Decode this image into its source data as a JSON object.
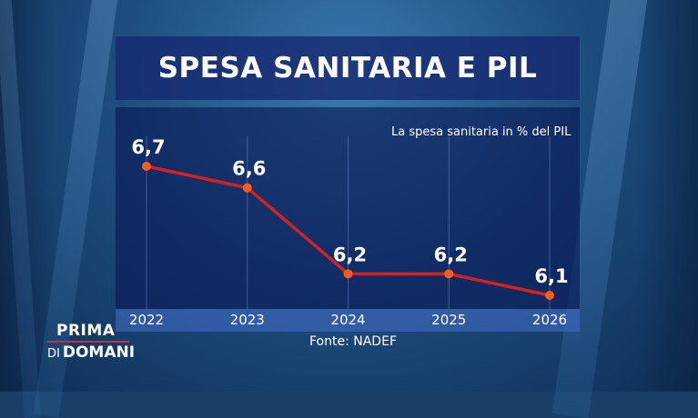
{
  "title": "SPESA SANITARIA E PIL",
  "source": "Fonte: NADEF",
  "logo": {
    "top": "PRIMA",
    "bottom_small": "DI",
    "bottom_big": "DOMANI"
  },
  "colors": {
    "line": "#d42020",
    "point": "#ff5a1f",
    "text": "#ffffff"
  },
  "chart_data": {
    "type": "line",
    "title": "SPESA SANITARIA E PIL",
    "subtitle": "La spesa sanitaria in % del PIL",
    "categories": [
      "2022",
      "2023",
      "2024",
      "2025",
      "2026"
    ],
    "values": [
      6.7,
      6.6,
      6.2,
      6.2,
      6.1
    ],
    "value_labels": [
      "6,7",
      "6,6",
      "6,2",
      "6,2",
      "6,1"
    ],
    "xlabel": "",
    "ylabel": "",
    "ylim": [
      6.0,
      6.8
    ],
    "grid": true
  }
}
